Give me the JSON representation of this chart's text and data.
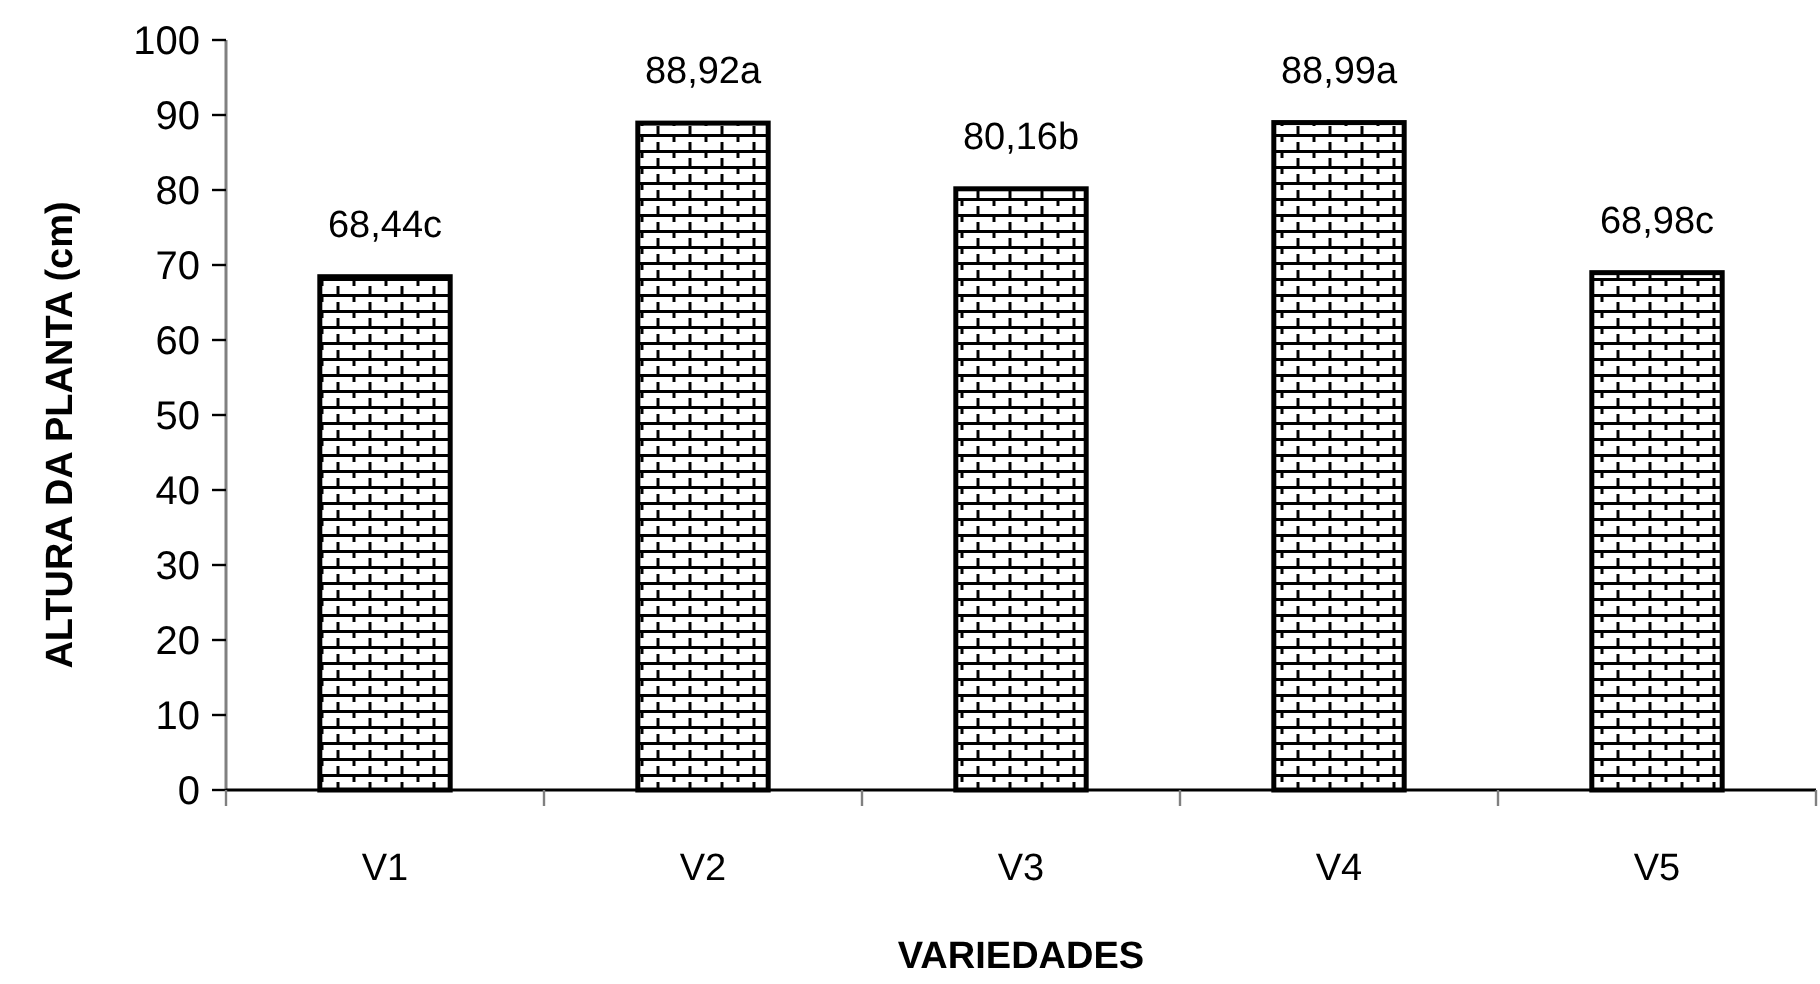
{
  "chart_data": {
    "type": "bar",
    "xlabel": "VARIEDADES",
    "ylabel": "ALTURA DA PLANTA (cm)",
    "categories": [
      "V1",
      "V2",
      "V3",
      "V4",
      "V5"
    ],
    "values": [
      68.44,
      88.92,
      80.16,
      88.99,
      68.98
    ],
    "value_labels": [
      "68,44c",
      "88,92a",
      "80,16b",
      "88,99a",
      "68,98c"
    ],
    "color": "#000000",
    "ylim": [
      0,
      100
    ],
    "yticks": [
      0,
      10,
      20,
      30,
      40,
      50,
      60,
      70,
      80,
      90,
      100
    ]
  }
}
